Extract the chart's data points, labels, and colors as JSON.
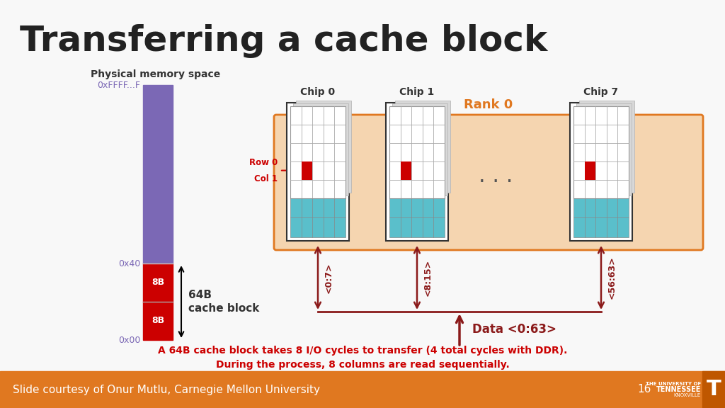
{
  "title": "Transferring a cache block",
  "bg_color": "#f8f8f8",
  "title_color": "#222222",
  "title_fontsize": 36,
  "footer_bg": "#e07820",
  "footer_text": "Slide courtesy of Onur Mutlu, Carnegie Mellon University",
  "footer_page": "16",
  "footer_text_color": "#ffffff",
  "phys_mem_label": "Physical memory space",
  "phys_mem_color": "#7b68b5",
  "addr_top": "0xFFFF...F",
  "addr_mid": "0x40",
  "addr_bot": "0x00",
  "addr_color": "#7b68b5",
  "cache_block_color": "#cc0000",
  "cache_block_label": "64B\ncache block",
  "rank0_bg": "#f5d5b0",
  "rank0_border": "#e07820",
  "rank0_label": "Rank 0",
  "rank0_label_color": "#e07820",
  "chip_border": "#333333",
  "chip_labels": [
    "Chip 0",
    "Chip 1",
    "Chip 7"
  ],
  "cell_highlight_color": "#cc0000",
  "cell_teal_color": "#5abfcb",
  "row0_col1_label": "Row 0\nCol 1",
  "row0_col1_color": "#cc0000",
  "arrow_color": "#8b1a1a",
  "data_label": "Data <0:63>",
  "bit_labels": [
    "<0:7>",
    "<8:15>",
    "<56:63>"
  ],
  "bottom_text1": "A 64B cache block takes 8 I/O cycles to transfer (4 total cycles with DDR).",
  "bottom_text2": "During the process, 8 columns are read sequentially.",
  "bottom_text_color": "#cc0000"
}
